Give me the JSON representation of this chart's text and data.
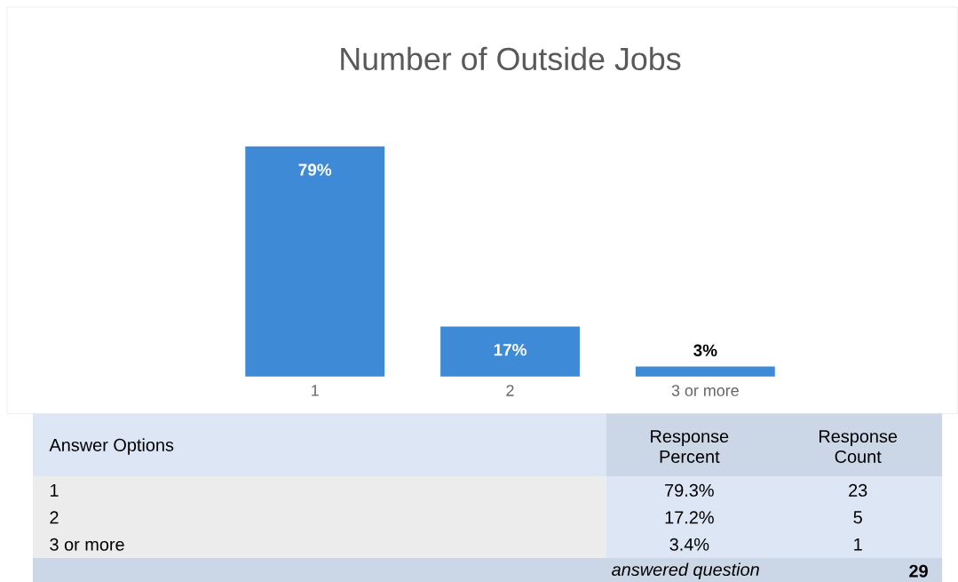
{
  "chart_data": [
    {
      "type": "bar",
      "title": "Number of Outside Jobs",
      "categories": [
        "1",
        "2",
        "3 or more"
      ],
      "values": [
        79.3,
        17.2,
        3.4
      ],
      "value_labels": [
        "79%",
        "17%",
        "3%"
      ],
      "color": "#3f8ad6"
    },
    {
      "type": "other",
      "annotations": [
        "Answer Options",
        "Response Percent",
        "Response Count",
        "1",
        "79.3%",
        "23",
        "2",
        "17.2%",
        "5",
        "3 or more",
        "3.4%",
        "1",
        "answered question",
        "29"
      ]
    }
  ]
}
